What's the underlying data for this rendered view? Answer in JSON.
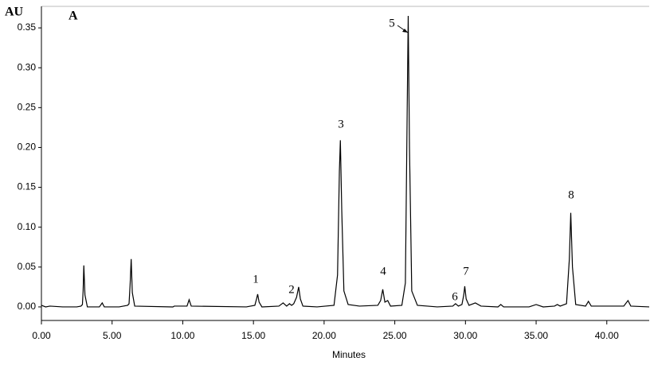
{
  "chart_data": {
    "type": "line",
    "title": "A",
    "xlabel": "Minutes",
    "ylabel": "AU",
    "annotations": [
      "1",
      "2",
      "3",
      "4",
      "5",
      "6",
      "7",
      "8"
    ],
    "x": [
      0,
      0.3,
      0.6,
      1.5,
      2.5,
      2.8,
      2.9,
      2.95,
      3.0,
      3.08,
      3.25,
      4.1,
      4.3,
      4.45,
      5.5,
      6.1,
      6.2,
      6.28,
      6.35,
      6.43,
      6.6,
      9.3,
      9.4,
      10.3,
      10.45,
      10.6,
      14.5,
      15.1,
      15.22,
      15.3,
      15.4,
      15.6,
      16.8,
      17.1,
      17.35,
      17.55,
      17.7,
      17.85,
      18.05,
      18.2,
      18.32,
      18.5,
      19.5,
      20.7,
      20.95,
      21.08,
      21.15,
      21.25,
      21.4,
      21.7,
      22.5,
      23.8,
      24.0,
      24.15,
      24.3,
      24.5,
      24.7,
      25.5,
      25.75,
      25.88,
      25.95,
      26.04,
      26.2,
      26.6,
      28.0,
      29.1,
      29.3,
      29.5,
      29.75,
      29.88,
      29.95,
      30.05,
      30.25,
      30.7,
      31.1,
      32.3,
      32.5,
      32.7,
      34.5,
      35.0,
      35.5,
      36.3,
      36.5,
      36.7,
      37.15,
      37.35,
      37.45,
      37.57,
      37.8,
      38.5,
      38.7,
      38.9,
      41.2,
      41.5,
      41.7,
      43.0
    ],
    "series": [
      {
        "color": "#000000",
        "values": [
          0.002,
          0.0,
          0.001,
          0.0,
          0.0,
          0.001,
          0.003,
          0.02,
          0.052,
          0.015,
          0.0,
          0.0,
          0.005,
          0.0,
          0.0,
          0.002,
          0.004,
          0.03,
          0.06,
          0.018,
          0.001,
          0.0,
          0.001,
          0.001,
          0.009,
          0.001,
          0.0,
          0.002,
          0.01,
          0.016,
          0.006,
          0.0,
          0.001,
          0.005,
          0.001,
          0.004,
          0.002,
          0.004,
          0.012,
          0.025,
          0.01,
          0.001,
          0.0,
          0.002,
          0.04,
          0.17,
          0.209,
          0.12,
          0.02,
          0.003,
          0.001,
          0.002,
          0.008,
          0.022,
          0.006,
          0.008,
          0.001,
          0.002,
          0.03,
          0.25,
          0.365,
          0.2,
          0.02,
          0.002,
          0.0,
          0.001,
          0.004,
          0.001,
          0.003,
          0.015,
          0.026,
          0.01,
          0.002,
          0.005,
          0.001,
          0.0,
          0.003,
          0.0,
          0.0,
          0.003,
          0.0,
          0.001,
          0.003,
          0.001,
          0.004,
          0.06,
          0.118,
          0.05,
          0.003,
          0.001,
          0.007,
          0.001,
          0.001,
          0.008,
          0.001,
          0.0
        ]
      }
    ],
    "xlim": [
      0,
      43
    ],
    "ylim": [
      -0.017,
      0.377
    ],
    "xticks": [
      {
        "value": 0,
        "label": "0.00"
      },
      {
        "value": 5,
        "label": "5.00"
      },
      {
        "value": 10,
        "label": "10.00"
      },
      {
        "value": 15,
        "label": "15.00"
      },
      {
        "value": 20,
        "label": "20.00"
      },
      {
        "value": 25,
        "label": "25.00"
      },
      {
        "value": 30,
        "label": "30.00"
      },
      {
        "value": 35,
        "label": "35.00"
      },
      {
        "value": 40,
        "label": "40.00"
      }
    ],
    "yticks": [
      {
        "value": 0,
        "label": "0.00"
      },
      {
        "value": 0.05,
        "label": "0.05"
      },
      {
        "value": 0.1,
        "label": "0.10"
      },
      {
        "value": 0.15,
        "label": "0.15"
      },
      {
        "value": 0.2,
        "label": "0.20"
      },
      {
        "value": 0.25,
        "label": "0.25"
      },
      {
        "value": 0.3,
        "label": "0.30"
      },
      {
        "value": 0.35,
        "label": "0.35"
      }
    ],
    "grid": false
  }
}
